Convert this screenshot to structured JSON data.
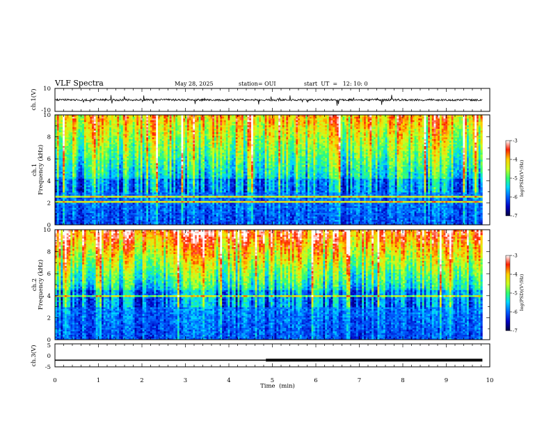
{
  "header": {
    "title": "VLF Spectra",
    "date": "May 28, 2025",
    "station": "station= OUI",
    "start": "start  UT  =   12: 10: 0"
  },
  "colors": {
    "spectrogram_scale": [
      "#000040",
      "#0000c0",
      "#0060ff",
      "#00d8ff",
      "#30ff70",
      "#c8ff20",
      "#ffd000",
      "#ff2000",
      "#ffffff"
    ]
  },
  "chart_data": [
    {
      "type": "line",
      "name": "ch1-waveform",
      "ylabel": "ch.1(V)",
      "ylim": [
        -10,
        10
      ],
      "yticks": [
        "10",
        "-10"
      ],
      "xlim": [
        0,
        10
      ],
      "baseline": 0,
      "description_level": "noise approx ±1 V with occasional spikes"
    },
    {
      "type": "heatmap",
      "name": "ch1-spectrogram",
      "ylabel": "ch.1\nFrequency (kHz)",
      "ylabel_lines": [
        "ch.1",
        "Frequency (kHz)"
      ],
      "ylim": [
        0,
        10
      ],
      "yticks": [
        "0",
        "2",
        "4",
        "6",
        "8",
        "10"
      ],
      "xlim": [
        0,
        9.83
      ],
      "colorbar": {
        "label": "log(PSD)(V²/Hz)",
        "range": [
          -7,
          -3
        ],
        "ticks": [
          "-3",
          "-4",
          "-5",
          "-6",
          "-7"
        ]
      },
      "low_band_top_khz": 4.2
    },
    {
      "type": "heatmap",
      "name": "ch2-spectrogram",
      "ylabel": "ch.2\nFrequency (kHz)",
      "ylabel_lines": [
        "ch.2",
        "Frequency (kHz)"
      ],
      "ylim": [
        0,
        10
      ],
      "yticks": [
        "0",
        "2",
        "4",
        "6",
        "8",
        "10"
      ],
      "xlim": [
        0,
        9.83
      ],
      "colorbar": {
        "label": "log(PSD)(V²/Hz)",
        "range": [
          -7,
          -3
        ],
        "ticks": [
          "-3",
          "-4",
          "-5",
          "-6",
          "-7"
        ]
      },
      "low_band_top_khz": 4.5
    },
    {
      "type": "line",
      "name": "ch3-signal",
      "ylabel": "ch.3(V)",
      "ylim": [
        -5,
        5
      ],
      "yticks": [
        "5",
        "0",
        "-5"
      ],
      "x": [
        0,
        4.85,
        4.85,
        9.83
      ],
      "y": [
        -2.1,
        -2.1,
        -2.1,
        -2.1
      ],
      "thick_from": 4.85
    }
  ],
  "x_axis": {
    "label": "Time  (min)",
    "ticks": [
      "0",
      "1",
      "2",
      "3",
      "4",
      "5",
      "6",
      "7",
      "8",
      "9",
      "10"
    ],
    "range": [
      0,
      10
    ]
  },
  "colorbar_labels": {
    "cb1": "log(PSD)(V²/Hz)",
    "cb2": "log(PSD)(V²/Hz)"
  }
}
